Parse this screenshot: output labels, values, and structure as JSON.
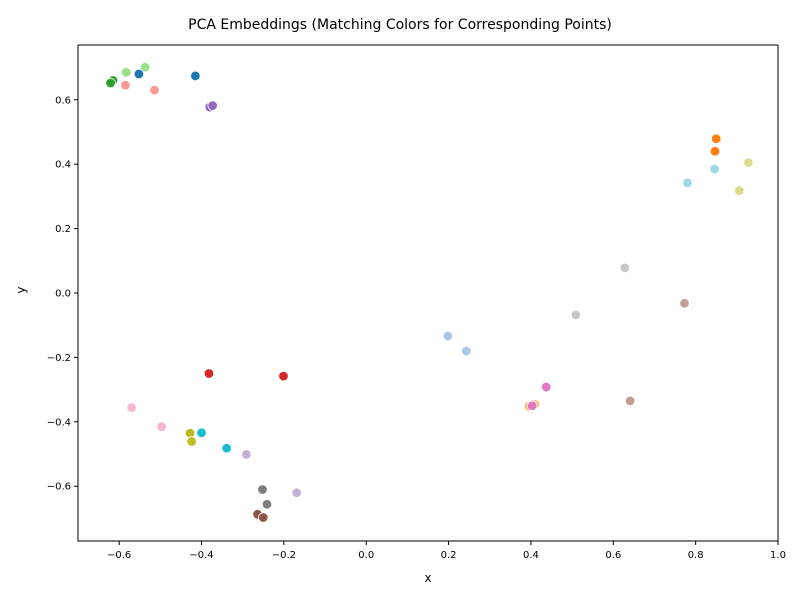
{
  "chart_data": {
    "type": "scatter",
    "title": "PCA Embeddings (Matching Colors for Corresponding Points)",
    "xlabel": "x",
    "ylabel": "y",
    "xlim": [
      -0.7,
      1.0
    ],
    "ylim": [
      -0.77,
      0.77
    ],
    "xticks": [
      -0.6,
      -0.4,
      -0.2,
      0.0,
      0.2,
      0.4,
      0.6,
      0.8,
      1.0
    ],
    "yticks": [
      -0.6,
      -0.4,
      -0.2,
      0.0,
      0.2,
      0.4,
      0.6
    ],
    "xtick_labels": [
      "−0.6",
      "−0.4",
      "−0.2",
      "0.0",
      "0.2",
      "0.4",
      "0.6",
      "0.8",
      "1.0"
    ],
    "ytick_labels": [
      "−0.6",
      "−0.4",
      "−0.2",
      "0.0",
      "0.2",
      "0.4",
      "0.6"
    ],
    "grid": false,
    "legend": false,
    "points": [
      {
        "x": -0.615,
        "y": 0.66,
        "color": "#2ca02c"
      },
      {
        "x": -0.621,
        "y": 0.652,
        "color": "#2ca02c"
      },
      {
        "x": -0.583,
        "y": 0.685,
        "color": "#98df8a"
      },
      {
        "x": -0.537,
        "y": 0.701,
        "color": "#98df8a"
      },
      {
        "x": -0.585,
        "y": 0.645,
        "color": "#ff9896"
      },
      {
        "x": -0.514,
        "y": 0.63,
        "color": "#ff9896"
      },
      {
        "x": -0.552,
        "y": 0.68,
        "color": "#1f77b4"
      },
      {
        "x": -0.415,
        "y": 0.674,
        "color": "#1f77b4"
      },
      {
        "x": -0.38,
        "y": 0.577,
        "color": "#9467bd"
      },
      {
        "x": -0.373,
        "y": 0.582,
        "color": "#9467bd"
      },
      {
        "x": 0.85,
        "y": 0.479,
        "color": "#ff7f0e"
      },
      {
        "x": 0.847,
        "y": 0.44,
        "color": "#ff7f0e"
      },
      {
        "x": 0.928,
        "y": 0.405,
        "color": "#dbdb8d"
      },
      {
        "x": 0.906,
        "y": 0.318,
        "color": "#dbdb8d"
      },
      {
        "x": 0.846,
        "y": 0.385,
        "color": "#9edae5"
      },
      {
        "x": 0.78,
        "y": 0.342,
        "color": "#9edae5"
      },
      {
        "x": 0.628,
        "y": 0.078,
        "color": "#c7c7c7"
      },
      {
        "x": 0.509,
        "y": -0.068,
        "color": "#c7c7c7"
      },
      {
        "x": 0.773,
        "y": -0.032,
        "color": "#c49c94"
      },
      {
        "x": 0.641,
        "y": -0.335,
        "color": "#c49c94"
      },
      {
        "x": 0.198,
        "y": -0.134,
        "color": "#aec7e8"
      },
      {
        "x": 0.243,
        "y": -0.18,
        "color": "#aec7e8"
      },
      {
        "x": 0.395,
        "y": -0.352,
        "color": "#ffbb78"
      },
      {
        "x": 0.41,
        "y": -0.346,
        "color": "#ffbb78"
      },
      {
        "x": 0.403,
        "y": -0.35,
        "color": "#e377c2"
      },
      {
        "x": 0.437,
        "y": -0.292,
        "color": "#e377c2"
      },
      {
        "x": -0.382,
        "y": -0.25,
        "color": "#d62728"
      },
      {
        "x": -0.201,
        "y": -0.258,
        "color": "#d62728"
      },
      {
        "x": -0.57,
        "y": -0.356,
        "color": "#f7b6d2"
      },
      {
        "x": -0.497,
        "y": -0.415,
        "color": "#f7b6d2"
      },
      {
        "x": -0.428,
        "y": -0.435,
        "color": "#bcbd22"
      },
      {
        "x": -0.424,
        "y": -0.461,
        "color": "#bcbd22"
      },
      {
        "x": -0.4,
        "y": -0.434,
        "color": "#17becf"
      },
      {
        "x": -0.339,
        "y": -0.482,
        "color": "#17becf"
      },
      {
        "x": -0.291,
        "y": -0.501,
        "color": "#c5b0d5"
      },
      {
        "x": -0.169,
        "y": -0.62,
        "color": "#c5b0d5"
      },
      {
        "x": -0.252,
        "y": -0.61,
        "color": "#7f7f7f"
      },
      {
        "x": -0.241,
        "y": -0.656,
        "color": "#7f7f7f"
      },
      {
        "x": -0.264,
        "y": -0.687,
        "color": "#8c564b"
      },
      {
        "x": -0.25,
        "y": -0.697,
        "color": "#8c564b"
      }
    ]
  }
}
